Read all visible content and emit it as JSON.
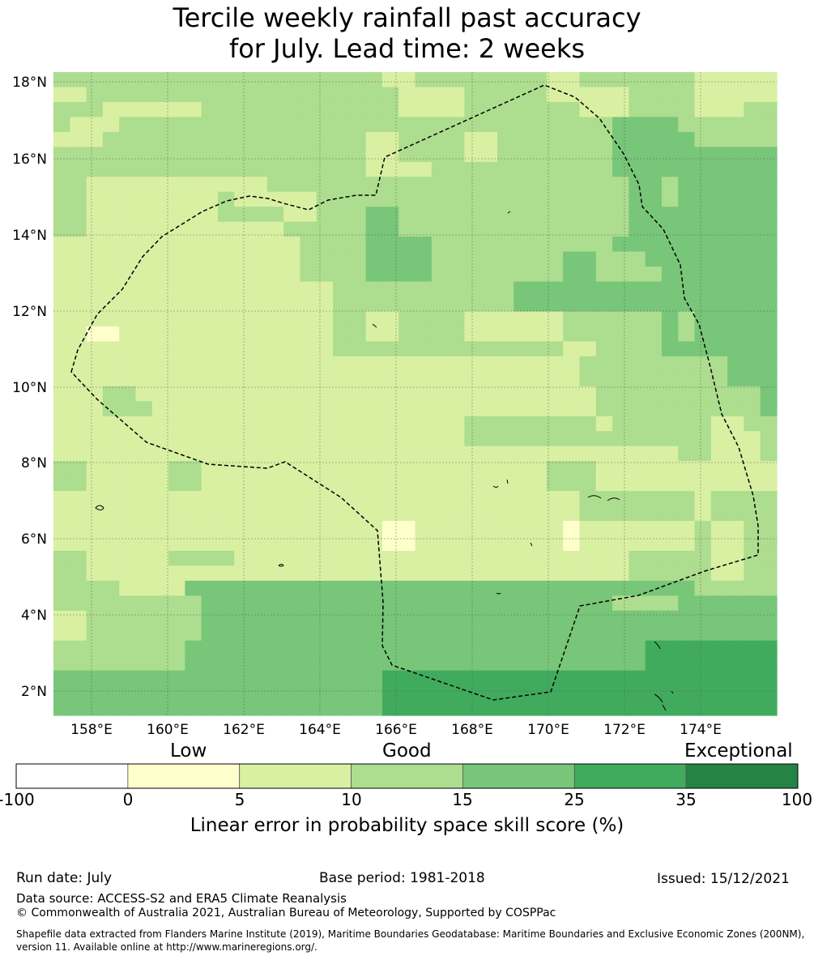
{
  "title": {
    "line1": "Tercile weekly rainfall past accuracy",
    "line2": "for July. Lead time: 2 weeks"
  },
  "map": {
    "lat_labels": [
      "18°N",
      "16°N",
      "14°N",
      "12°N",
      "10°N",
      "8°N",
      "6°N",
      "4°N",
      "2°N"
    ],
    "lon_labels": [
      "158°E",
      "160°E",
      "162°E",
      "164°E",
      "166°E",
      "168°E",
      "170°E",
      "172°E",
      "174°E"
    ],
    "grid_encoding": "rows north to south, columns west to east; each character is a skill class: 1 = 0-5, 2 = 5-10, 3 = 10-15, 4 = 15-25, 5 = 25-35, 6 = 35-100",
    "grid": [
      "33333333333333333333223333333322333333322222",
      "22333333333333333333322223333322222333322222",
      "33322222233333333333322223333333222333322233",
      "32223333333333333333333333333333334444333333",
      "22233333333333333332233332233333334444433333",
      "33333333333333333332233332233333334444444444",
      "33333333333333333332222333333333334444444444",
      "33222222222223333333333333333333333443444444",
      "33222222223222223333333333333333333443444444",
      "33222222223333223334433333333333333444444444",
      "33222222222222333334433333333333333444444444",
      "22222222222222233334444333333333334444444444",
      "22222222222222233334444333333334433344444444",
      "22222222222222233334444333333334433334444444",
      "22222222222222222333333333334444444444444444",
      "22222222222222222333333333334444444444444444",
      "22222222222222222332233332222223333334344444",
      "22112222222222222332233332222223333334344444",
      "22222222222222222333333333333332233334444444",
      "22222222222222222222222222222222333333333444",
      "22222222222222222222222222222222333333333444",
      "22233222222222222222222222222222233333333334",
      "22233322222222222222222222222222233333333334",
      "22222222222222222222222223333333323333332233",
      "22222222222222222222222223333333333333332223",
      "22222222222222222222222222222222222222332223",
      "33222223322222222222222222222233322222222222",
      "33222223322222222222222222222233322222222222",
      "22222222222222222222222222222222333333323333",
      "22222222222222222222222222222222333333323333",
      "22222222222222222222112222222221222222232233",
      "22222222222222222222112222222221222222232233",
      "33222223333222222222222222222222222333332233",
      "33222222222222222222222222222222222333332233",
      "33332222444444444444444444444444444444433333",
      "33333333344444444444444444444444443333444444",
      "22333333344444444444444444444444444444444444",
      "22333333344444444444444444444444444444444444",
      "33333333444444444444444444444444444455555555",
      "33333333444444444444444444444444444455555555",
      "44444444444444444444555555555555555555555555",
      "44444444444444444444555555555555555555555555",
      "44444444444444444444555555555555555555555555"
    ],
    "colors": {
      "1": "#ffffcc",
      "2": "#d9f0a3",
      "3": "#addd8e",
      "4": "#78c679",
      "5": "#41ab5d",
      "6": "#238443"
    }
  },
  "colorbar": {
    "words": [
      "Low",
      "Good",
      "Exceptional"
    ],
    "ticks": [
      "-100",
      "0",
      "5",
      "10",
      "15",
      "25",
      "35",
      "100"
    ],
    "colors": [
      "#ffffff",
      "#ffffcc",
      "#d9f0a3",
      "#addd8e",
      "#78c679",
      "#41ab5d",
      "#238443"
    ],
    "label": "Linear error in probability space skill score (%)"
  },
  "footer": {
    "run_date": "Run date: July",
    "base_period": "Base period: 1981-2018",
    "issued": "Issued: 15/12/2021",
    "data_source": "Data source: ACCESS-S2 and ERA5 Climate Reanalysis",
    "copyright": "© Commonwealth of Australia 2021, Australian Bureau of Meteorology, Supported by COSPPac",
    "shapefile_note": "Shapefile data extracted from Flanders Marine Institute (2019), Maritime Boundaries Geodatabase: Maritime Boundaries and Exclusive Economic Zones (200NM), version 11. Available online at http://www.marineregions.org/."
  }
}
